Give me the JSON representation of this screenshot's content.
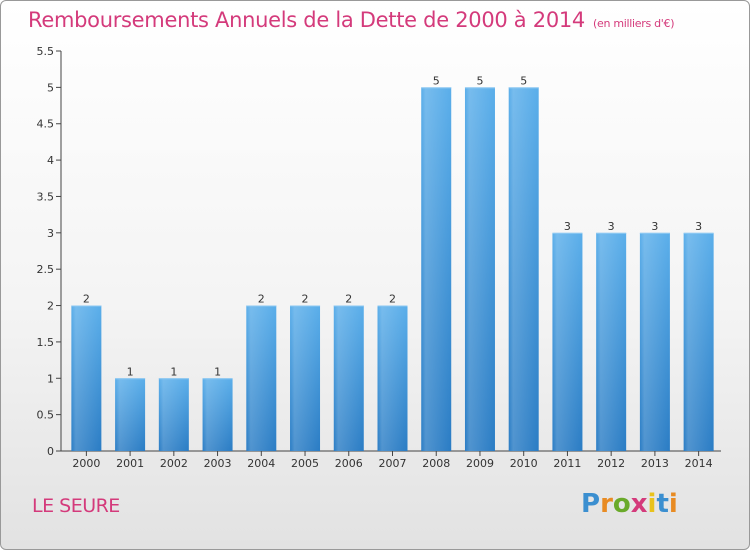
{
  "chart_data": {
    "type": "bar",
    "title": "Remboursements Annuels de la Dette de 2000 à 2014",
    "unit": "(en milliers d'€)",
    "categories": [
      "2000",
      "2001",
      "2002",
      "2003",
      "2004",
      "2005",
      "2006",
      "2007",
      "2008",
      "2009",
      "2010",
      "2011",
      "2012",
      "2013",
      "2014"
    ],
    "values": [
      2,
      1,
      1,
      1,
      2,
      2,
      2,
      2,
      5,
      5,
      5,
      3,
      3,
      3,
      3
    ],
    "ylim": [
      0,
      5.5
    ],
    "yticks": [
      "0",
      "0.5",
      "1",
      "1.5",
      "2",
      "2.5",
      "3",
      "3.5",
      "4",
      "4.5",
      "5",
      "5.5"
    ],
    "bar_color": "#4a9ee0",
    "grid": false
  },
  "footer": {
    "commune": "LE SEURE",
    "logo": {
      "p": "P",
      "r": "r",
      "o": "o",
      "x": "x",
      "i1": "i",
      "t": "t",
      "i2": "i"
    }
  }
}
